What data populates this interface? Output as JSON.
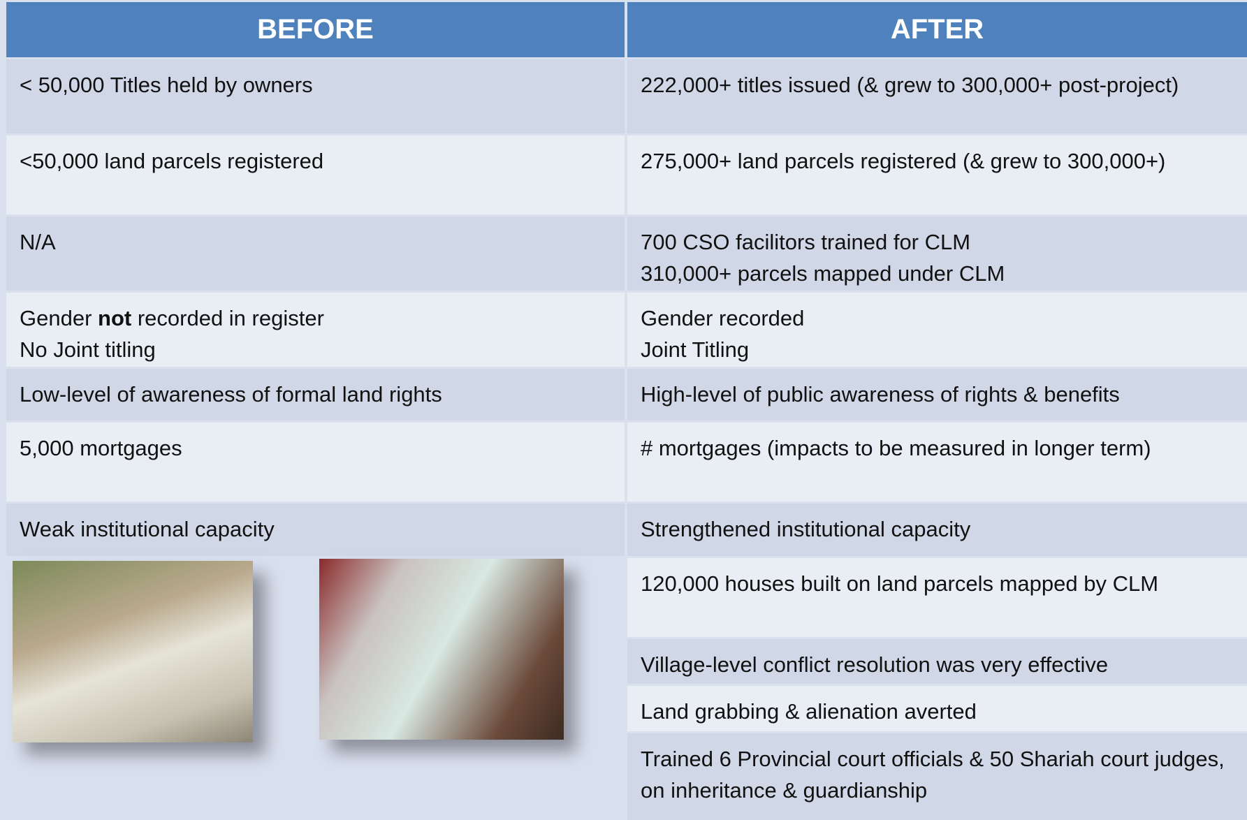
{
  "header": {
    "before": "BEFORE",
    "after": "AFTER"
  },
  "rows": [
    {
      "before": [
        "< 50,000 Titles held by owners"
      ],
      "after": [
        "222,000+ titles issued (& grew to 300,000+ post-project)"
      ]
    },
    {
      "before": [
        "<50,000 land parcels registered"
      ],
      "after": [
        "275,000+ land parcels registered (& grew to 300,000+)"
      ]
    },
    {
      "before": [
        "N/A"
      ],
      "after": [
        "700 CSO facilitors trained for CLM",
        "310,000+ parcels mapped under CLM"
      ]
    },
    {
      "before": [
        [
          "Gender ",
          "not",
          " recorded in register"
        ],
        "No Joint titling"
      ],
      "after": [
        "Gender recorded",
        "Joint Titling"
      ]
    },
    {
      "before": [
        "Low-level of awareness of formal land rights"
      ],
      "after": [
        "High-level of public awareness of rights & benefits"
      ]
    },
    {
      "before": [
        "5,000 mortgages"
      ],
      "after": [
        "# mortgages (impacts to be measured in longer term)"
      ]
    },
    {
      "before": [
        "Weak institutional capacity"
      ],
      "after": [
        "Strengthened institutional capacity"
      ]
    },
    {
      "after": [
        "120,000 houses built on land parcels mapped by CLM"
      ]
    },
    {
      "after": [
        "Village-level conflict resolution was very effective"
      ]
    },
    {
      "after": [
        "Land grabbing & alienation averted"
      ]
    },
    {
      "after": [
        "Trained 6 Provincial court officials & 50 Shariah court judges, on inheritance & guardianship"
      ]
    }
  ]
}
